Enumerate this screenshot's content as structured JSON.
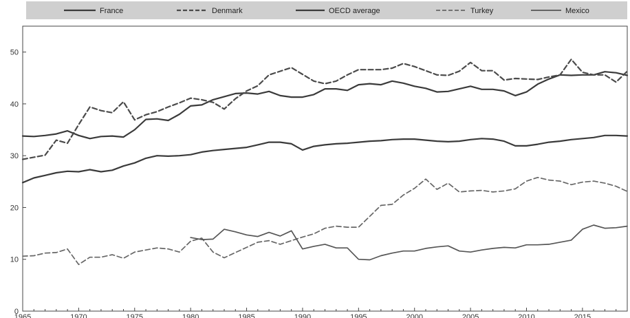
{
  "chart_data": {
    "type": "line",
    "title": "",
    "xlabel": "",
    "ylabel": "",
    "xlim": [
      1965,
      2019
    ],
    "ylim": [
      0,
      55
    ],
    "yticks": [
      0,
      10,
      20,
      30,
      40,
      50
    ],
    "xticks": [
      1965,
      1970,
      1975,
      1980,
      1985,
      1990,
      1995,
      2000,
      2005,
      2010,
      2015
    ],
    "grid": false,
    "legend_position": "top",
    "series": [
      {
        "name": "France",
        "style": "solid",
        "width": 2.2,
        "color": "#3a3a3a",
        "x": [
          1965,
          1966,
          1967,
          1968,
          1969,
          1970,
          1971,
          1972,
          1973,
          1974,
          1975,
          1976,
          1977,
          1978,
          1979,
          1980,
          1981,
          1982,
          1983,
          1984,
          1985,
          1986,
          1987,
          1988,
          1989,
          1990,
          1991,
          1992,
          1993,
          1994,
          1995,
          1996,
          1997,
          1998,
          1999,
          2000,
          2001,
          2002,
          2003,
          2004,
          2005,
          2006,
          2007,
          2008,
          2009,
          2010,
          2011,
          2012,
          2013,
          2014,
          2015,
          2016,
          2017,
          2018,
          2019
        ],
        "y": [
          33.8,
          33.7,
          33.9,
          34.2,
          34.8,
          33.9,
          33.3,
          33.7,
          33.8,
          33.6,
          35.0,
          37.0,
          37.1,
          36.8,
          38.0,
          39.6,
          39.8,
          40.8,
          41.4,
          42.0,
          42.1,
          41.9,
          42.4,
          41.6,
          41.3,
          41.3,
          41.8,
          42.9,
          42.9,
          42.6,
          43.7,
          43.9,
          43.7,
          44.4,
          44.0,
          43.4,
          43.0,
          42.3,
          42.4,
          42.9,
          43.4,
          42.8,
          42.8,
          42.5,
          41.6,
          42.3,
          43.8,
          44.8,
          45.6,
          45.5,
          45.6,
          45.6,
          46.2,
          46.0,
          45.5
        ]
      },
      {
        "name": "Denmark",
        "style": "dashed",
        "width": 2.2,
        "color": "#4a4a4a",
        "x": [
          1965,
          1966,
          1967,
          1968,
          1969,
          1970,
          1971,
          1972,
          1973,
          1974,
          1975,
          1976,
          1977,
          1978,
          1979,
          1980,
          1981,
          1982,
          1983,
          1984,
          1985,
          1986,
          1987,
          1988,
          1989,
          1990,
          1991,
          1992,
          1993,
          1994,
          1995,
          1996,
          1997,
          1998,
          1999,
          2000,
          2001,
          2002,
          2003,
          2004,
          2005,
          2006,
          2007,
          2008,
          2009,
          2010,
          2011,
          2012,
          2013,
          2014,
          2015,
          2016,
          2017,
          2018,
          2019
        ],
        "y": [
          29.3,
          29.7,
          30.1,
          33.0,
          32.4,
          36.0,
          39.4,
          38.7,
          38.3,
          40.4,
          36.9,
          37.9,
          38.5,
          39.4,
          40.2,
          41.1,
          40.8,
          40.3,
          39.0,
          41.0,
          42.5,
          43.5,
          45.6,
          46.3,
          47.0,
          45.7,
          44.4,
          43.9,
          44.4,
          45.6,
          46.6,
          46.6,
          46.6,
          46.9,
          47.8,
          47.2,
          46.4,
          45.6,
          45.5,
          46.3,
          48.0,
          46.4,
          46.4,
          44.6,
          44.9,
          44.8,
          44.7,
          45.2,
          45.6,
          48.6,
          46.1,
          45.6,
          45.6,
          44.2,
          46.3
        ]
      },
      {
        "name": "OECD average",
        "style": "solid",
        "width": 2.2,
        "color": "#3a3a3a",
        "x": [
          1965,
          1966,
          1967,
          1968,
          1969,
          1970,
          1971,
          1972,
          1973,
          1974,
          1975,
          1976,
          1977,
          1978,
          1979,
          1980,
          1981,
          1982,
          1983,
          1984,
          1985,
          1986,
          1987,
          1988,
          1989,
          1990,
          1991,
          1992,
          1993,
          1994,
          1995,
          1996,
          1997,
          1998,
          1999,
          2000,
          2001,
          2002,
          2003,
          2004,
          2005,
          2006,
          2007,
          2008,
          2009,
          2010,
          2011,
          2012,
          2013,
          2014,
          2015,
          2016,
          2017,
          2018,
          2019
        ],
        "y": [
          24.8,
          25.7,
          26.2,
          26.7,
          27.0,
          26.9,
          27.3,
          26.9,
          27.2,
          28.0,
          28.6,
          29.5,
          30.0,
          29.9,
          30.0,
          30.2,
          30.7,
          31.0,
          31.2,
          31.4,
          31.6,
          32.1,
          32.6,
          32.6,
          32.3,
          31.1,
          31.8,
          32.1,
          32.3,
          32.4,
          32.6,
          32.8,
          32.9,
          33.1,
          33.2,
          33.2,
          33.0,
          32.8,
          32.7,
          32.8,
          33.1,
          33.3,
          33.2,
          32.8,
          31.9,
          31.9,
          32.2,
          32.6,
          32.8,
          33.1,
          33.3,
          33.5,
          33.9,
          33.9,
          33.8
        ]
      },
      {
        "name": "Turkey",
        "style": "dashed",
        "width": 1.7,
        "color": "#666666",
        "x": [
          1965,
          1966,
          1967,
          1968,
          1969,
          1970,
          1971,
          1972,
          1973,
          1974,
          1975,
          1976,
          1977,
          1978,
          1979,
          1980,
          1981,
          1982,
          1983,
          1984,
          1985,
          1986,
          1987,
          1988,
          1989,
          1990,
          1991,
          1992,
          1993,
          1994,
          1995,
          1996,
          1997,
          1998,
          1999,
          2000,
          2001,
          2002,
          2003,
          2004,
          2005,
          2006,
          2007,
          2008,
          2009,
          2010,
          2011,
          2012,
          2013,
          2014,
          2015,
          2016,
          2017,
          2018,
          2019
        ],
        "y": [
          10.6,
          10.7,
          11.2,
          11.3,
          12.0,
          9.0,
          10.4,
          10.4,
          10.9,
          10.2,
          11.4,
          11.8,
          12.2,
          12.0,
          11.4,
          13.5,
          14.1,
          11.4,
          10.3,
          11.3,
          12.3,
          13.3,
          13.6,
          12.9,
          13.6,
          14.3,
          14.9,
          16.0,
          16.4,
          16.2,
          16.2,
          18.3,
          20.4,
          20.6,
          22.4,
          23.7,
          25.5,
          23.5,
          24.7,
          23.0,
          23.2,
          23.3,
          23.0,
          23.2,
          23.6,
          25.1,
          25.8,
          25.3,
          25.1,
          24.4,
          24.9,
          25.1,
          24.7,
          24.1,
          23.1
        ]
      },
      {
        "name": "Mexico",
        "style": "solid",
        "width": 1.7,
        "color": "#555555",
        "x": [
          1980,
          1981,
          1982,
          1983,
          1984,
          1985,
          1986,
          1987,
          1988,
          1989,
          1990,
          1991,
          1992,
          1993,
          1994,
          1995,
          1996,
          1997,
          1998,
          1999,
          2000,
          2001,
          2002,
          2003,
          2004,
          2005,
          2006,
          2007,
          2008,
          2009,
          2010,
          2011,
          2012,
          2013,
          2014,
          2015,
          2016,
          2017,
          2018,
          2019
        ],
        "y": [
          14.2,
          13.8,
          13.9,
          15.8,
          15.3,
          14.7,
          14.4,
          15.2,
          14.5,
          15.5,
          12.0,
          12.5,
          12.9,
          12.2,
          12.2,
          10.0,
          9.9,
          10.7,
          11.2,
          11.6,
          11.6,
          12.1,
          12.4,
          12.6,
          11.6,
          11.4,
          11.8,
          12.1,
          12.3,
          12.2,
          12.8,
          12.8,
          12.9,
          13.3,
          13.7,
          15.8,
          16.6,
          16.0,
          16.1,
          16.4
        ]
      }
    ]
  }
}
